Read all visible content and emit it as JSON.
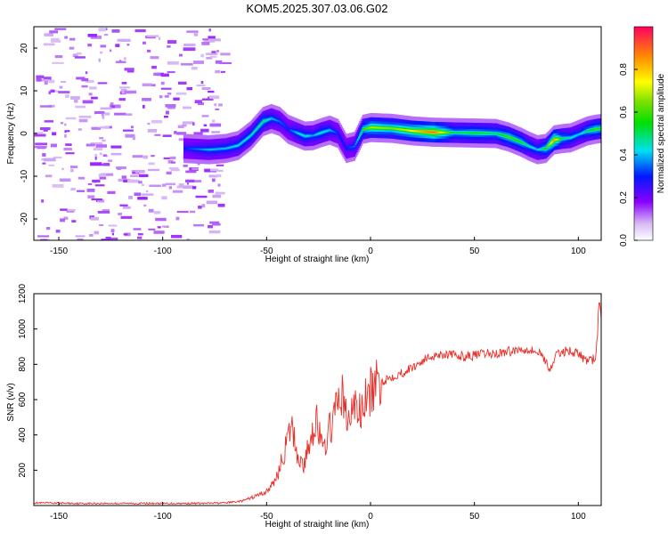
{
  "title": "KOM5.2025.307.03.06.G02",
  "chart_data": [
    {
      "type": "heatmap",
      "xlabel": "Height of straight line (km)",
      "ylabel": "Frequency (Hz)",
      "xlim": [
        -162,
        111
      ],
      "ylim": [
        -25,
        25
      ],
      "xticks": [
        -150,
        -100,
        -50,
        0,
        50,
        100
      ],
      "yticks": [
        -20,
        -10,
        0,
        10,
        20
      ],
      "noise_region_x": [
        -162,
        -72
      ],
      "ridge": {
        "x": [
          -90,
          -78,
          -70,
          -64,
          -58,
          -52,
          -48,
          -44,
          -40,
          -36,
          -32,
          -28,
          -24,
          -20,
          -16,
          -12,
          -8,
          -4,
          0,
          10,
          20,
          30,
          40,
          50,
          60,
          66,
          72,
          76,
          80,
          84,
          88,
          92,
          96,
          100,
          104,
          108,
          111
        ],
        "freq": [
          -3.5,
          -3.8,
          -3.5,
          -2.8,
          -0.5,
          2.8,
          3.5,
          2.8,
          1.0,
          0.2,
          -0.6,
          -0.5,
          0.2,
          0.8,
          0.0,
          -3.5,
          -3.0,
          1.0,
          1.4,
          1.2,
          0.6,
          0.3,
          0.2,
          0.1,
          0.0,
          -0.8,
          -2.0,
          -3.0,
          -3.8,
          -3.5,
          -1.5,
          -1.2,
          -1.0,
          -0.2,
          0.6,
          1.0,
          1.2
        ],
        "amplitude": [
          0.3,
          0.4,
          0.4,
          0.42,
          0.45,
          0.5,
          0.4,
          0.35,
          0.3,
          0.4,
          0.45,
          0.38,
          0.45,
          0.4,
          0.3,
          0.3,
          0.35,
          0.55,
          0.7,
          0.65,
          0.75,
          0.9,
          0.5,
          0.55,
          0.5,
          0.6,
          0.55,
          0.45,
          0.4,
          0.55,
          0.85,
          0.5,
          0.45,
          0.4,
          0.5,
          0.6,
          0.55
        ]
      },
      "colorbar": {
        "label": "Normalized spectral amplitude",
        "range": [
          0,
          1
        ],
        "ticks": [
          "0.0",
          "0.2",
          "0.4",
          "0.6",
          "0.8"
        ]
      }
    },
    {
      "type": "line",
      "xlabel": "Height of straight line (km)",
      "ylabel": "SNR (v/v)",
      "xlim": [
        -162,
        111
      ],
      "ylim": [
        0,
        1200
      ],
      "xticks": [
        -150,
        -100,
        -50,
        0,
        50,
        100
      ],
      "yticks": [
        200,
        400,
        600,
        800,
        1000,
        1200
      ],
      "series": [
        {
          "name": "SNR",
          "color": "#e8302a",
          "x": [
            -162,
            -140,
            -120,
            -100,
            -80,
            -70,
            -62,
            -58,
            -54,
            -50,
            -47,
            -44,
            -41,
            -38,
            -35,
            -32,
            -29,
            -26,
            -23,
            -20,
            -17,
            -14,
            -11,
            -8,
            -5,
            -2,
            0,
            5,
            10,
            15,
            20,
            25,
            30,
            35,
            40,
            45,
            50,
            55,
            60,
            65,
            70,
            75,
            80,
            83,
            86,
            90,
            95,
            100,
            104,
            108,
            109,
            110,
            111
          ],
          "y": [
            15,
            12,
            12,
            12,
            12,
            15,
            25,
            40,
            60,
            80,
            120,
            200,
            320,
            450,
            280,
            220,
            380,
            500,
            300,
            420,
            520,
            650,
            450,
            580,
            520,
            600,
            640,
            700,
            730,
            750,
            780,
            820,
            850,
            860,
            850,
            845,
            850,
            860,
            860,
            870,
            880,
            890,
            870,
            850,
            770,
            860,
            880,
            860,
            820,
            830,
            920,
            1180,
            1080
          ]
        }
      ]
    }
  ]
}
